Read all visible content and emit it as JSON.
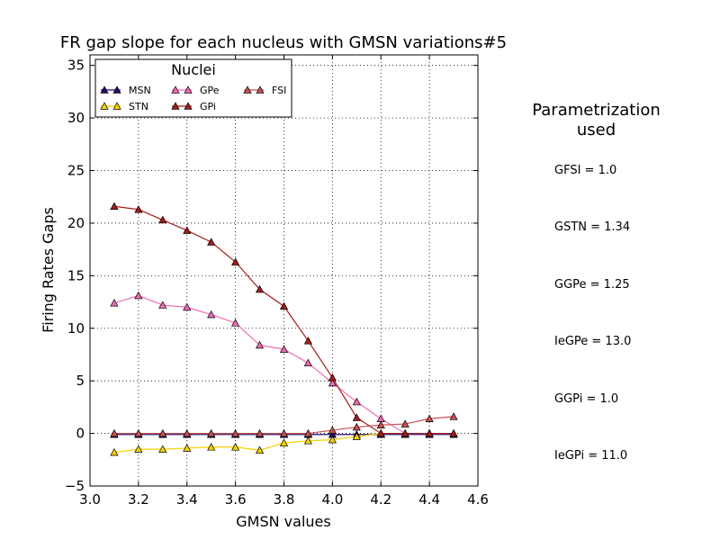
{
  "chart_data": {
    "type": "line",
    "title": "FR gap slope for each nucleus with GMSN variations#5",
    "xlabel": "GMSN values",
    "ylabel": "Firing Rates Gaps",
    "xlim": [
      3.0,
      4.6
    ],
    "ylim": [
      -5,
      36
    ],
    "xticks": [
      3.0,
      3.2,
      3.4,
      3.6,
      3.8,
      4.0,
      4.2,
      4.4,
      4.6
    ],
    "xtick_labels": [
      "3.0",
      "3.2",
      "3.4",
      "3.6",
      "3.8",
      "4.0",
      "4.2",
      "4.4",
      "4.6"
    ],
    "yticks": [
      -5,
      0,
      5,
      10,
      15,
      20,
      25,
      30,
      35
    ],
    "ytick_labels": [
      "−5",
      "0",
      "5",
      "10",
      "15",
      "20",
      "25",
      "30",
      "35"
    ],
    "grid": true,
    "legend": {
      "title": "Nuclei",
      "placement": "top-left"
    },
    "x": [
      3.1,
      3.2,
      3.3,
      3.4,
      3.5,
      3.6,
      3.7,
      3.8,
      3.9,
      4.0,
      4.1,
      4.2,
      4.3,
      4.4,
      4.5
    ],
    "series": [
      {
        "name": "MSN",
        "color": "#2a0a6e",
        "values": [
          -0.1,
          -0.1,
          -0.1,
          -0.1,
          -0.1,
          -0.1,
          -0.1,
          -0.1,
          -0.1,
          -0.1,
          -0.1,
          -0.1,
          -0.1,
          -0.1,
          -0.1
        ]
      },
      {
        "name": "STN",
        "color": "#f5d000",
        "values": [
          -1.8,
          -1.5,
          -1.5,
          -1.4,
          -1.3,
          -1.3,
          -1.6,
          -0.9,
          -0.7,
          -0.6,
          -0.3,
          0.0,
          null,
          null,
          null
        ]
      },
      {
        "name": "GPe",
        "color": "#f06bb4",
        "values": [
          12.4,
          13.1,
          12.2,
          12.0,
          11.3,
          10.5,
          8.4,
          8.0,
          6.7,
          4.8,
          3.0,
          1.4,
          0.0,
          0.0,
          0.0
        ]
      },
      {
        "name": "GPi",
        "color": "#a51c1c",
        "values": [
          21.6,
          21.3,
          20.3,
          19.3,
          18.2,
          16.3,
          13.7,
          12.1,
          8.8,
          5.3,
          1.5,
          0.0,
          0.0,
          0.0,
          0.0
        ]
      },
      {
        "name": "FSI",
        "color": "#c85050",
        "values": [
          0.0,
          0.0,
          0.0,
          0.0,
          0.0,
          0.0,
          0.0,
          0.0,
          0.0,
          0.3,
          0.6,
          0.8,
          0.9,
          1.4,
          1.6
        ]
      }
    ]
  },
  "parametrization": {
    "title_line1": "Parametrization",
    "title_line2": "used",
    "items": [
      "GFSI = 1.0",
      "GSTN = 1.34",
      "GGPe = 1.25",
      "IeGPe = 13.0",
      "GGPi = 1.0",
      "IeGPi = 11.0"
    ]
  }
}
